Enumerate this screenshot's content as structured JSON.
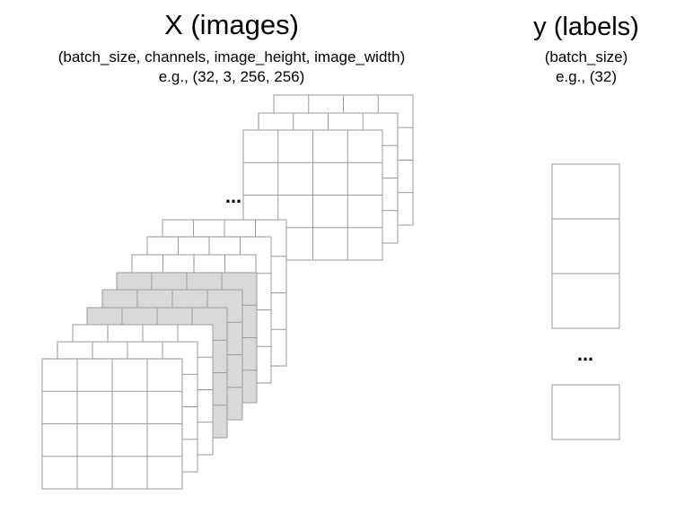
{
  "x_block": {
    "title": "X (images)",
    "shape_line": "(batch_size, channels, image_height, image_width)",
    "example_line": "e.g., (32, 3, 256, 256)",
    "ellipsis": "..."
  },
  "y_block": {
    "title": "y (labels)",
    "shape_line": "(batch_size)",
    "example_line": "e.g., (32)",
    "ellipsis": "..."
  },
  "colors": {
    "grid_line": "#9a9a9a",
    "image_fill": "#ffffff",
    "highlight_fill": "#d9d9d9",
    "text": "#000000"
  },
  "image_grid": {
    "rows": 4,
    "cols": 4,
    "highlighted_image_group": "middle"
  },
  "label_boxes": {
    "visible_top": 3,
    "visible_bottom": 1
  }
}
